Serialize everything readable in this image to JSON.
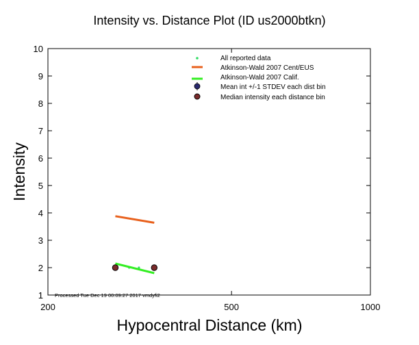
{
  "chart_data": {
    "type": "scatter",
    "title": "Intensity vs. Distance Plot (ID us2000btkn)",
    "xlabel": "Hypocentral Distance (km)",
    "ylabel": "Intensity",
    "x_scale": "log",
    "xlim": [
      200,
      1000
    ],
    "ylim": [
      1,
      10
    ],
    "x_ticks": [
      200,
      500,
      1000
    ],
    "y_ticks": [
      1,
      2,
      3,
      4,
      5,
      6,
      7,
      8,
      9,
      10
    ],
    "legend_position": "top-right",
    "series": [
      {
        "name": "All reported data",
        "kind": "points",
        "color": "#33dd66",
        "points": [
          [
            280,
            2
          ],
          [
            300,
            2
          ],
          [
            315,
            2
          ],
          [
            337,
            2
          ]
        ]
      },
      {
        "name": "Atkinson-Wald 2007 Cent/EUS",
        "kind": "line",
        "color": "#e8601c",
        "points": [
          [
            280,
            3.88
          ],
          [
            340,
            3.64
          ]
        ]
      },
      {
        "name": "Atkinson-Wald 2007 Calif.",
        "kind": "line",
        "color": "#33ee22",
        "points": [
          [
            280,
            2.15
          ],
          [
            340,
            1.8
          ]
        ]
      },
      {
        "name": "Mean int +/-1 STDEV each dist bin",
        "kind": "errorbar",
        "color": "#2a2a6e",
        "points": [
          [
            280,
            2
          ],
          [
            340,
            2
          ]
        ]
      },
      {
        "name": "Median intensity each distance bin",
        "kind": "median",
        "color": "#7a2b2b",
        "points": [
          [
            280,
            2
          ],
          [
            340,
            2
          ]
        ]
      }
    ],
    "footnote": "Processed Tue Dec 19 00:09:27 2017 vmdyfi2"
  }
}
